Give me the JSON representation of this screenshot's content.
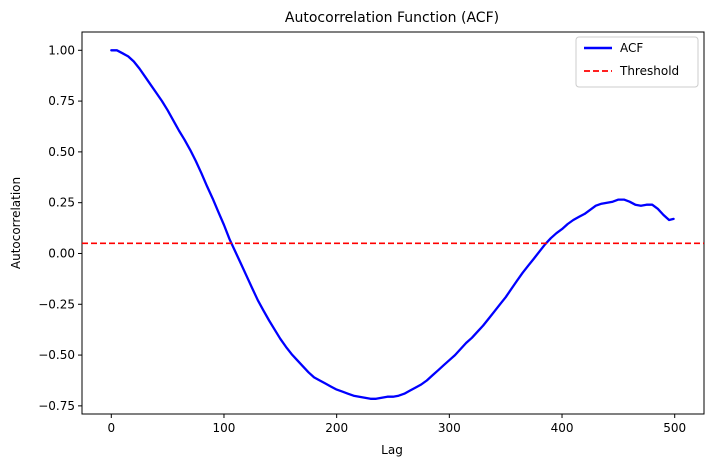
{
  "chart_data": {
    "type": "line",
    "title": "Autocorrelation Function (ACF)",
    "xlabel": "Lag",
    "ylabel": "Autocorrelation",
    "xlim": [
      -26,
      526
    ],
    "ylim": [
      -0.79,
      1.09
    ],
    "xticks": [
      0,
      100,
      200,
      300,
      400,
      500
    ],
    "xtick_labels": [
      "0",
      "100",
      "200",
      "300",
      "400",
      "500"
    ],
    "yticks": [
      -0.75,
      -0.5,
      -0.25,
      0.0,
      0.25,
      0.5,
      0.75,
      1.0
    ],
    "ytick_labels": [
      "−0.75",
      "−0.50",
      "−0.25",
      "0.00",
      "0.25",
      "0.50",
      "0.75",
      "1.00"
    ],
    "grid": false,
    "legend_position": "top-right",
    "series": [
      {
        "name": "ACF",
        "color": "#0000ff",
        "style": "solid",
        "x": [
          0,
          5,
          10,
          15,
          20,
          25,
          30,
          35,
          40,
          45,
          50,
          55,
          60,
          65,
          70,
          75,
          80,
          85,
          90,
          95,
          100,
          105,
          110,
          115,
          120,
          125,
          130,
          135,
          140,
          145,
          150,
          155,
          160,
          165,
          170,
          175,
          180,
          185,
          190,
          195,
          200,
          205,
          210,
          215,
          220,
          225,
          230,
          235,
          240,
          245,
          250,
          255,
          260,
          265,
          270,
          275,
          280,
          285,
          290,
          295,
          300,
          305,
          310,
          315,
          320,
          325,
          330,
          335,
          340,
          345,
          350,
          355,
          360,
          365,
          370,
          375,
          380,
          385,
          390,
          395,
          400,
          405,
          410,
          415,
          420,
          425,
          430,
          435,
          440,
          445,
          450,
          455,
          460,
          465,
          470,
          475,
          480,
          485,
          490,
          495,
          499
        ],
        "y": [
          1.0,
          1.0,
          0.985,
          0.97,
          0.945,
          0.91,
          0.87,
          0.83,
          0.79,
          0.75,
          0.705,
          0.655,
          0.605,
          0.56,
          0.51,
          0.455,
          0.395,
          0.33,
          0.27,
          0.205,
          0.14,
          0.07,
          0.01,
          -0.05,
          -0.11,
          -0.17,
          -0.23,
          -0.28,
          -0.33,
          -0.375,
          -0.42,
          -0.46,
          -0.495,
          -0.525,
          -0.555,
          -0.585,
          -0.61,
          -0.625,
          -0.64,
          -0.655,
          -0.67,
          -0.68,
          -0.69,
          -0.7,
          -0.705,
          -0.71,
          -0.715,
          -0.715,
          -0.71,
          -0.705,
          -0.705,
          -0.7,
          -0.69,
          -0.675,
          -0.66,
          -0.645,
          -0.625,
          -0.6,
          -0.575,
          -0.55,
          -0.525,
          -0.5,
          -0.47,
          -0.44,
          -0.415,
          -0.385,
          -0.355,
          -0.32,
          -0.285,
          -0.25,
          -0.215,
          -0.175,
          -0.135,
          -0.095,
          -0.06,
          -0.025,
          0.01,
          0.045,
          0.075,
          0.1,
          0.12,
          0.145,
          0.165,
          0.18,
          0.195,
          0.215,
          0.235,
          0.245,
          0.25,
          0.255,
          0.265,
          0.265,
          0.255,
          0.24,
          0.235,
          0.24,
          0.24,
          0.22,
          0.19,
          0.165,
          0.17
        ]
      },
      {
        "name": "Threshold",
        "color": "#ff0000",
        "style": "dashed",
        "y_constant": 0.05
      }
    ]
  }
}
